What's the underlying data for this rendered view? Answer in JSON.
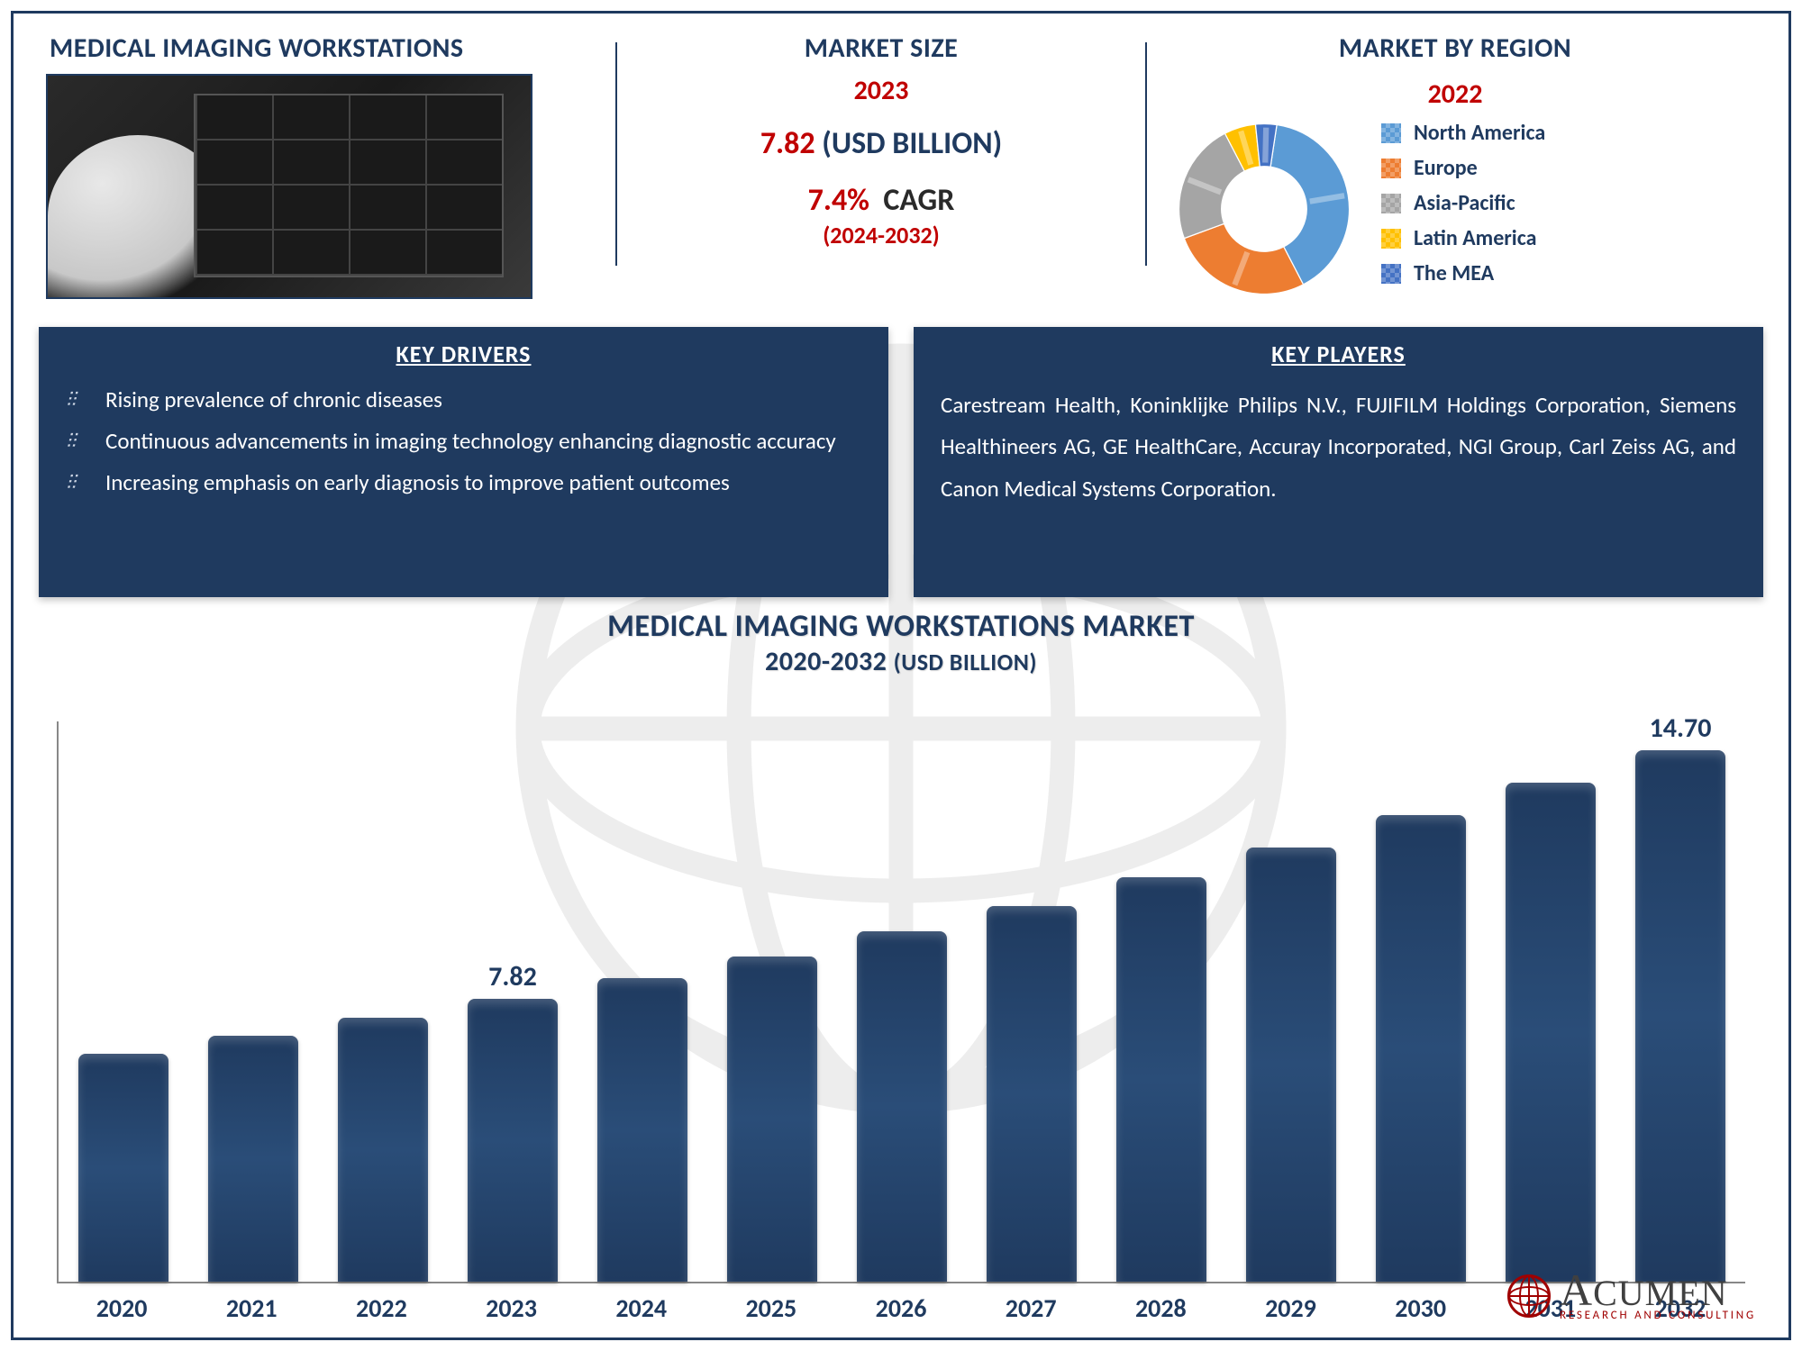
{
  "colors": {
    "navy": "#1f3a5f",
    "red": "#c00000",
    "white": "#ffffff",
    "border": "#1f3a5f",
    "bar": "#1f3a5f",
    "axis": "#888888"
  },
  "header": {
    "title": "MEDICAL IMAGING WORKSTATIONS",
    "market_size_title": "MARKET SIZE",
    "market_by_region_title": "MARKET BY REGION"
  },
  "market_size": {
    "year": "2023",
    "value": "7.82",
    "value_unit": "(USD BILLION)",
    "cagr_value": "7.4%",
    "cagr_label": "CAGR",
    "cagr_period": "(2024-2032)"
  },
  "region": {
    "year": "2022",
    "donut": {
      "inner_ratio": 0.5,
      "slices": [
        {
          "label": "North America",
          "value": 40,
          "color": "#5b9bd5"
        },
        {
          "label": "Europe",
          "value": 27,
          "color": "#ed7d31"
        },
        {
          "label": "Asia-Pacific",
          "value": 23,
          "color": "#a5a5a5"
        },
        {
          "label": "Latin America",
          "value": 6,
          "color": "#ffc000"
        },
        {
          "label": "The MEA",
          "value": 4,
          "color": "#4472c4"
        }
      ]
    }
  },
  "drivers": {
    "title": "KEY DRIVERS",
    "items": [
      "Rising prevalence of chronic diseases",
      "Continuous advancements in imaging technology enhancing diagnostic accuracy",
      "Increasing emphasis on early diagnosis to improve patient outcomes"
    ]
  },
  "players": {
    "title": "KEY PLAYERS",
    "text": "Carestream Health, Koninklijke Philips N.V., FUJIFILM Holdings Corporation, Siemens Healthineers AG, GE HealthCare, Accuray Incorporated, NGI Group, Carl Zeiss AG, and Canon Medical Systems Corporation."
  },
  "chart": {
    "title_line1": "MEDICAL IMAGING WORKSTATIONS MARKET",
    "title_line2_range": "2020-2032",
    "title_line2_unit": "(USD BILLION)",
    "type": "bar",
    "bar_color": "#1f3a5f",
    "bar_width_ratio": 0.7,
    "background": "#ffffff",
    "y_max": 15.5,
    "label_fontsize": 28,
    "value_label_fontsize": 30,
    "categories": [
      "2020",
      "2021",
      "2022",
      "2023",
      "2024",
      "2025",
      "2026",
      "2027",
      "2028",
      "2029",
      "2030",
      "2031",
      "2032"
    ],
    "values": [
      6.3,
      6.8,
      7.3,
      7.82,
      8.4,
      9.0,
      9.7,
      10.4,
      11.2,
      12.0,
      12.9,
      13.8,
      14.7
    ],
    "shown_value_labels": {
      "2023": "7.82",
      "2032": "14.70"
    }
  },
  "logo": {
    "name": "ACUMEN",
    "tag": "RESEARCH AND CONSULTING"
  }
}
